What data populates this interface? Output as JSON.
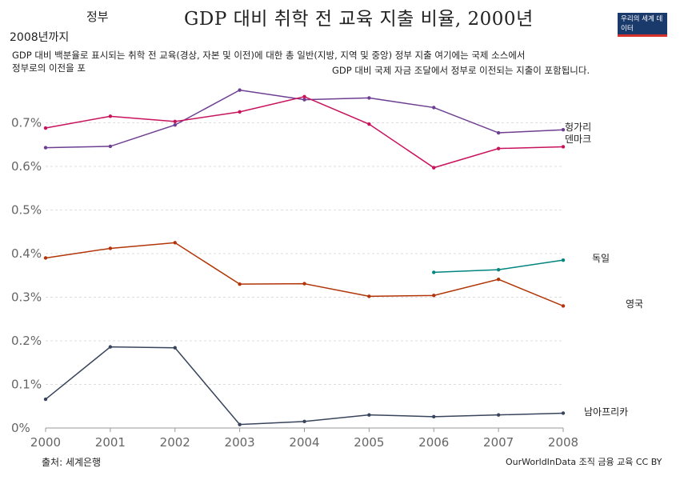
{
  "header": {
    "top_left": "정부",
    "title": "GDP 대비 취학 전 교육 지출 비율, 2000년",
    "subtitle": "2008년까지",
    "description_line1": "GDP 대비 백분율로 표시되는 취학 전 교육(경상, 자본 및 이전)에 대한 총 일반(지방, 지역 및 중앙) 정부 지출 여기에는 국제 소스에서",
    "description_line2": "정부로의 이전을 포",
    "description_line3": "GDP 대비 국제 자금 조달에서 정부로 이전되는 지출이 포함됩니다."
  },
  "logo": {
    "text": "우리의 세계 데이터",
    "bg": "#1a3a6b",
    "accent": "#d8312b"
  },
  "footer": {
    "source": "출처: 세계은행",
    "license": "OurWorldInData 조직 금융 교육 CC BY"
  },
  "chart_data": {
    "type": "line",
    "title": "GDP 대비 취학 전 교육 지출 비율, 2000년",
    "subtitle": "2008년까지",
    "x": [
      2000,
      2001,
      2002,
      2003,
      2004,
      2005,
      2006,
      2007,
      2008
    ],
    "xlim": [
      2000,
      2008
    ],
    "ylim": [
      0,
      0.8
    ],
    "y_ticks": [
      0,
      0.1,
      0.2,
      0.3,
      0.4,
      0.5,
      0.6,
      0.7
    ],
    "y_tick_labels": [
      "0%",
      "0.1%",
      "0.2%",
      "0.3%",
      "0.4%",
      "0.5%",
      "0.6%",
      "0.7%"
    ],
    "x_tick_labels": [
      "2000",
      "2001",
      "2002",
      "2003",
      "2004",
      "2005",
      "2006",
      "2007",
      "2008"
    ],
    "grid": "horizontal dashed",
    "series": [
      {
        "name": "헝가리",
        "color": "#6d3e91",
        "values": [
          0.643,
          0.646,
          0.695,
          0.775,
          0.753,
          0.757,
          0.735,
          0.677,
          0.684
        ]
      },
      {
        "name": "덴마크",
        "color": "#c8125c",
        "values": [
          0.688,
          0.715,
          0.703,
          0.725,
          0.76,
          0.697,
          0.597,
          0.641,
          0.645
        ]
      },
      {
        "name": "독일",
        "color": "#00847e",
        "values": [
          null,
          null,
          null,
          null,
          null,
          null,
          0.357,
          0.363,
          0.385
        ]
      },
      {
        "name": "영국",
        "color": "#b13507",
        "values": [
          0.39,
          0.412,
          0.425,
          0.33,
          0.331,
          0.302,
          0.304,
          0.341,
          0.28
        ]
      },
      {
        "name": "남아프리카",
        "color": "#38445c",
        "values": [
          0.066,
          0.186,
          0.184,
          0.008,
          0.015,
          0.03,
          0.026,
          0.03,
          0.034
        ]
      }
    ]
  }
}
